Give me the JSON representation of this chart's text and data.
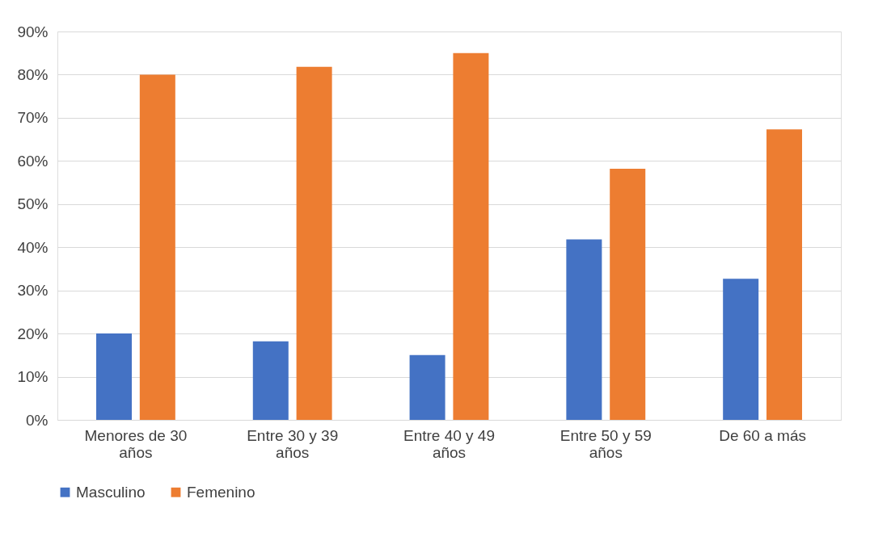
{
  "chart_data": {
    "type": "bar",
    "categories": [
      "Menores de 30 años",
      "Entre 30 y 39 años",
      "Entre 40 y 49 años",
      "Entre 50 y 59 años",
      "De 60 a más"
    ],
    "series": [
      {
        "name": "Masculino",
        "color": "#4472c4",
        "values": [
          20.0,
          18.2,
          15.0,
          41.8,
          32.7
        ]
      },
      {
        "name": "Femenino",
        "color": "#ed7d31",
        "values": [
          80.0,
          81.8,
          85.0,
          58.2,
          67.3
        ]
      }
    ],
    "ylim": [
      0,
      90
    ],
    "yticks": [
      {
        "value": 0,
        "label": "0%"
      },
      {
        "value": 10,
        "label": "10%"
      },
      {
        "value": 20,
        "label": "20%"
      },
      {
        "value": 30,
        "label": "30%"
      },
      {
        "value": 40,
        "label": "40%"
      },
      {
        "value": 50,
        "label": "50%"
      },
      {
        "value": 60,
        "label": "60%"
      },
      {
        "value": 70,
        "label": "70%"
      },
      {
        "value": 80,
        "label": "80%"
      },
      {
        "value": 90,
        "label": "90%"
      }
    ],
    "grid": "y",
    "legend": "bottom"
  }
}
